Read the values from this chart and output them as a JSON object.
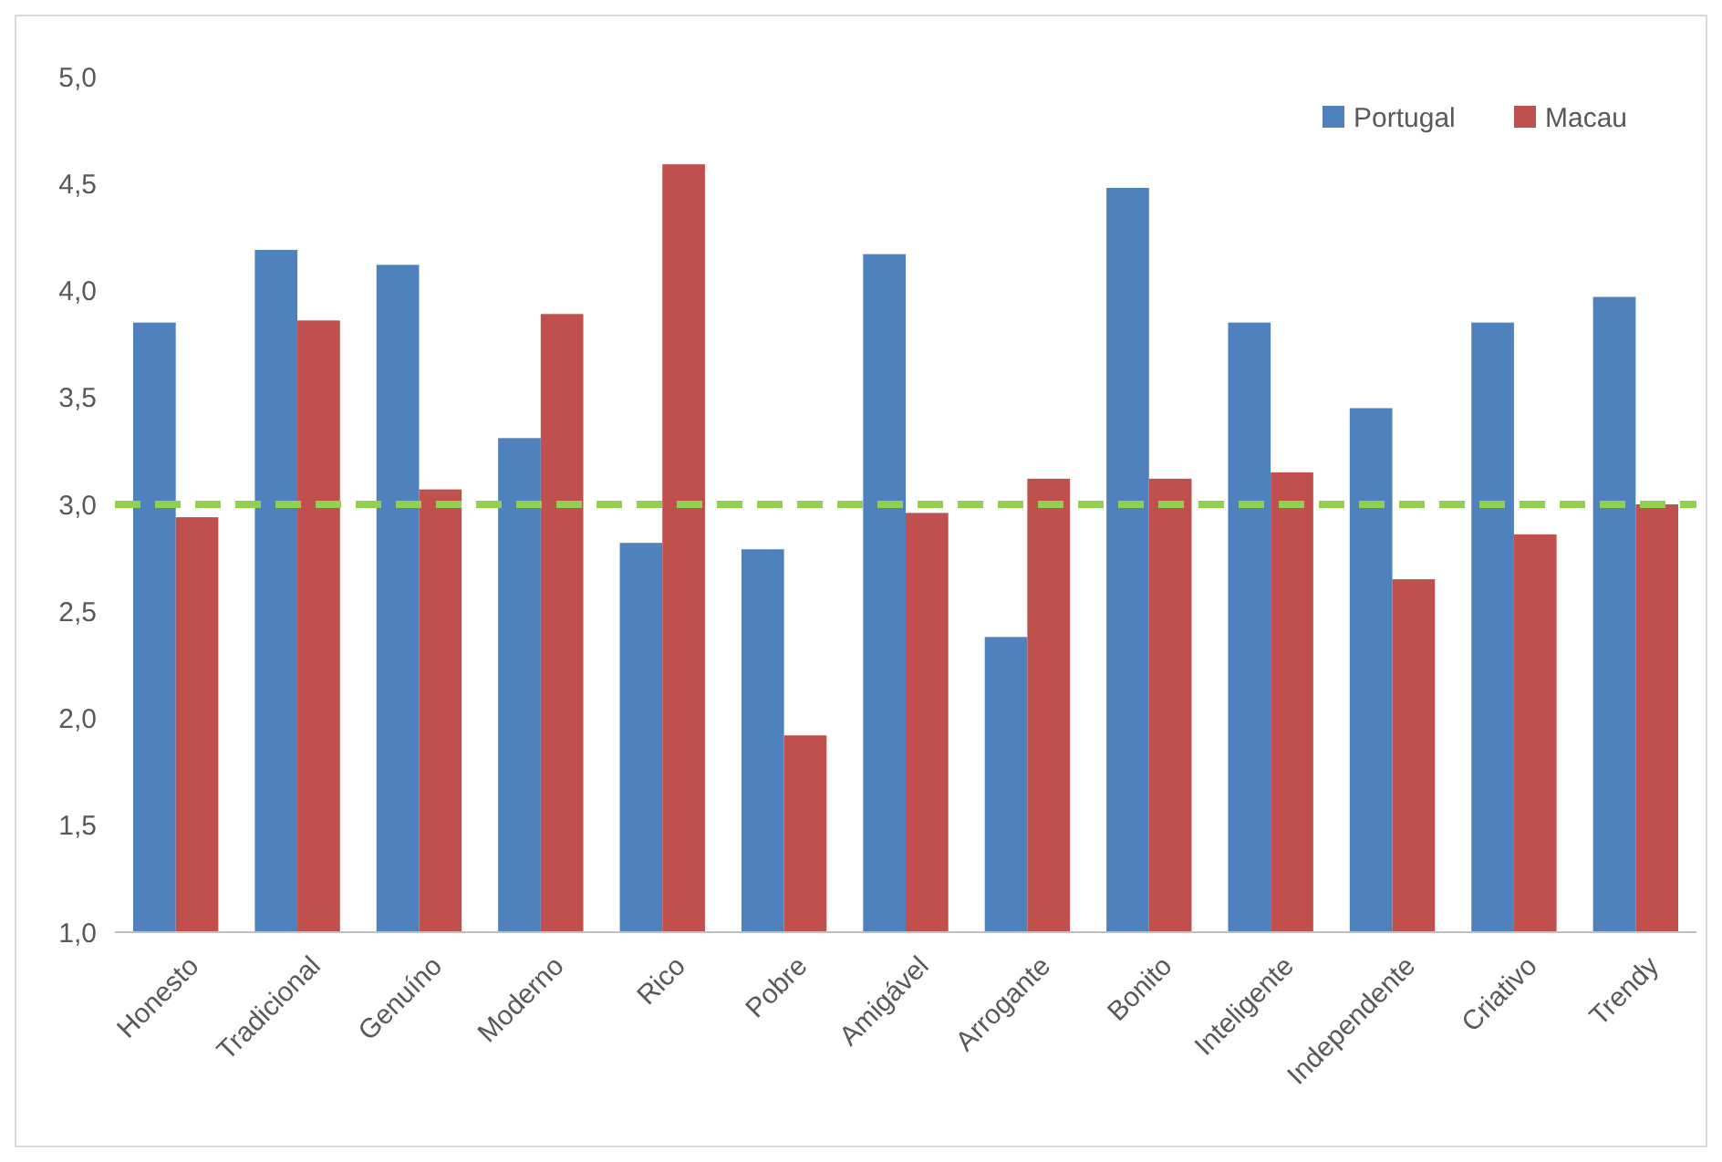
{
  "chart_data": {
    "type": "bar",
    "categories": [
      "Honesto",
      "Tradicional",
      "Genuíno",
      "Moderno",
      "Rico",
      "Pobre",
      "Amigável",
      "Arrogante",
      "Bonito",
      "Inteligente",
      "Independente",
      "Criativo",
      "Trendy"
    ],
    "series": [
      {
        "name": "Portugal",
        "color": "#4f81bd",
        "values": [
          3.85,
          4.19,
          4.12,
          3.31,
          2.82,
          2.79,
          4.17,
          2.38,
          4.48,
          3.85,
          3.45,
          3.85,
          3.97
        ]
      },
      {
        "name": "Macau",
        "color": "#c0504d",
        "values": [
          2.94,
          3.86,
          3.07,
          3.89,
          4.59,
          1.92,
          2.96,
          3.12,
          3.12,
          3.15,
          2.65,
          2.86,
          3.0
        ]
      }
    ],
    "ylim": [
      1,
      5
    ],
    "yticks": [
      {
        "value": 1,
        "label": "1,0"
      },
      {
        "value": 1.5,
        "label": "1,5"
      },
      {
        "value": 2,
        "label": "2,0"
      },
      {
        "value": 2.5,
        "label": "2,5"
      },
      {
        "value": 3,
        "label": "3,0"
      },
      {
        "value": 3.5,
        "label": "3,5"
      },
      {
        "value": 4,
        "label": "4,0"
      },
      {
        "value": 4.5,
        "label": "4,5"
      },
      {
        "value": 5,
        "label": "5,0"
      }
    ],
    "ref_lines": [
      {
        "axis": "y",
        "value": 3,
        "color": "#92d050",
        "line_style": "dashed"
      }
    ],
    "grid": false,
    "legend": "top right"
  }
}
